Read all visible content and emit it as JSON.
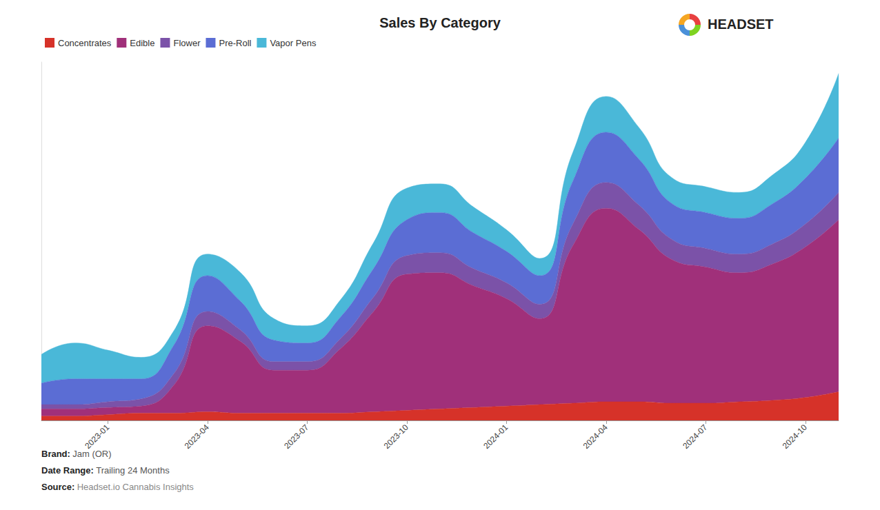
{
  "chart_data": {
    "type": "area",
    "title": "Sales By Category",
    "stacked": true,
    "grid": false,
    "legend": "upper left",
    "tick_labels": "x",
    "categories": [
      null,
      null,
      "2023-01",
      null,
      null,
      "2023-04",
      null,
      null,
      "2023-07",
      null,
      null,
      "2023-10",
      null,
      null,
      "2024-01",
      null,
      null,
      "2024-04",
      null,
      null,
      "2024-07",
      null,
      null,
      "2024-10",
      null
    ],
    "ylim": [
      0,
      25
    ],
    "series": [
      {
        "name": "Concentrates",
        "color": "#d63229",
        "values": [
          0.3,
          0.3,
          0.4,
          0.5,
          0.5,
          0.6,
          0.5,
          0.5,
          0.5,
          0.5,
          0.6,
          0.7,
          0.8,
          0.9,
          1.0,
          1.1,
          1.2,
          1.3,
          1.3,
          1.2,
          1.2,
          1.3,
          1.4,
          1.6,
          2.0
        ]
      },
      {
        "name": "Edible",
        "color": "#a0307a",
        "values": [
          0.5,
          0.5,
          0.5,
          0.5,
          2.0,
          6.0,
          5.0,
          3.0,
          3.0,
          4.5,
          7.0,
          9.5,
          9.5,
          8.5,
          7.5,
          6.0,
          11.0,
          13.5,
          12.0,
          10.0,
          9.5,
          9.0,
          9.5,
          10.5,
          12.0
        ]
      },
      {
        "name": "Flower",
        "color": "#7b52a8",
        "values": [
          0.3,
          0.3,
          0.4,
          0.5,
          0.8,
          1.0,
          0.8,
          0.6,
          0.6,
          0.7,
          1.0,
          1.3,
          1.4,
          1.2,
          1.1,
          1.0,
          1.5,
          1.8,
          1.7,
          1.4,
          1.3,
          1.3,
          1.4,
          1.6,
          1.9
        ]
      },
      {
        "name": "Pre-Roll",
        "color": "#5b6dd4",
        "values": [
          1.5,
          1.8,
          1.6,
          1.4,
          2.0,
          2.5,
          2.0,
          1.5,
          1.3,
          1.5,
          2.0,
          2.5,
          2.8,
          2.5,
          2.2,
          2.0,
          3.0,
          3.5,
          3.2,
          2.5,
          2.5,
          2.5,
          2.8,
          3.2,
          3.8
        ]
      },
      {
        "name": "Vapor Pens",
        "color": "#4ab8d8",
        "values": [
          2.0,
          2.5,
          2.0,
          1.5,
          1.0,
          1.5,
          2.0,
          1.5,
          1.2,
          1.2,
          1.8,
          2.2,
          2.0,
          1.8,
          1.5,
          1.2,
          2.0,
          2.5,
          2.2,
          1.8,
          1.8,
          1.8,
          2.0,
          2.5,
          4.5
        ]
      }
    ],
    "annotations": [
      "HEADSET",
      "Brand:",
      "Jam (OR)",
      "Date Range:",
      "Trailing 24 Months",
      "Source:",
      "Headset.io Cannabis Insights"
    ]
  }
}
